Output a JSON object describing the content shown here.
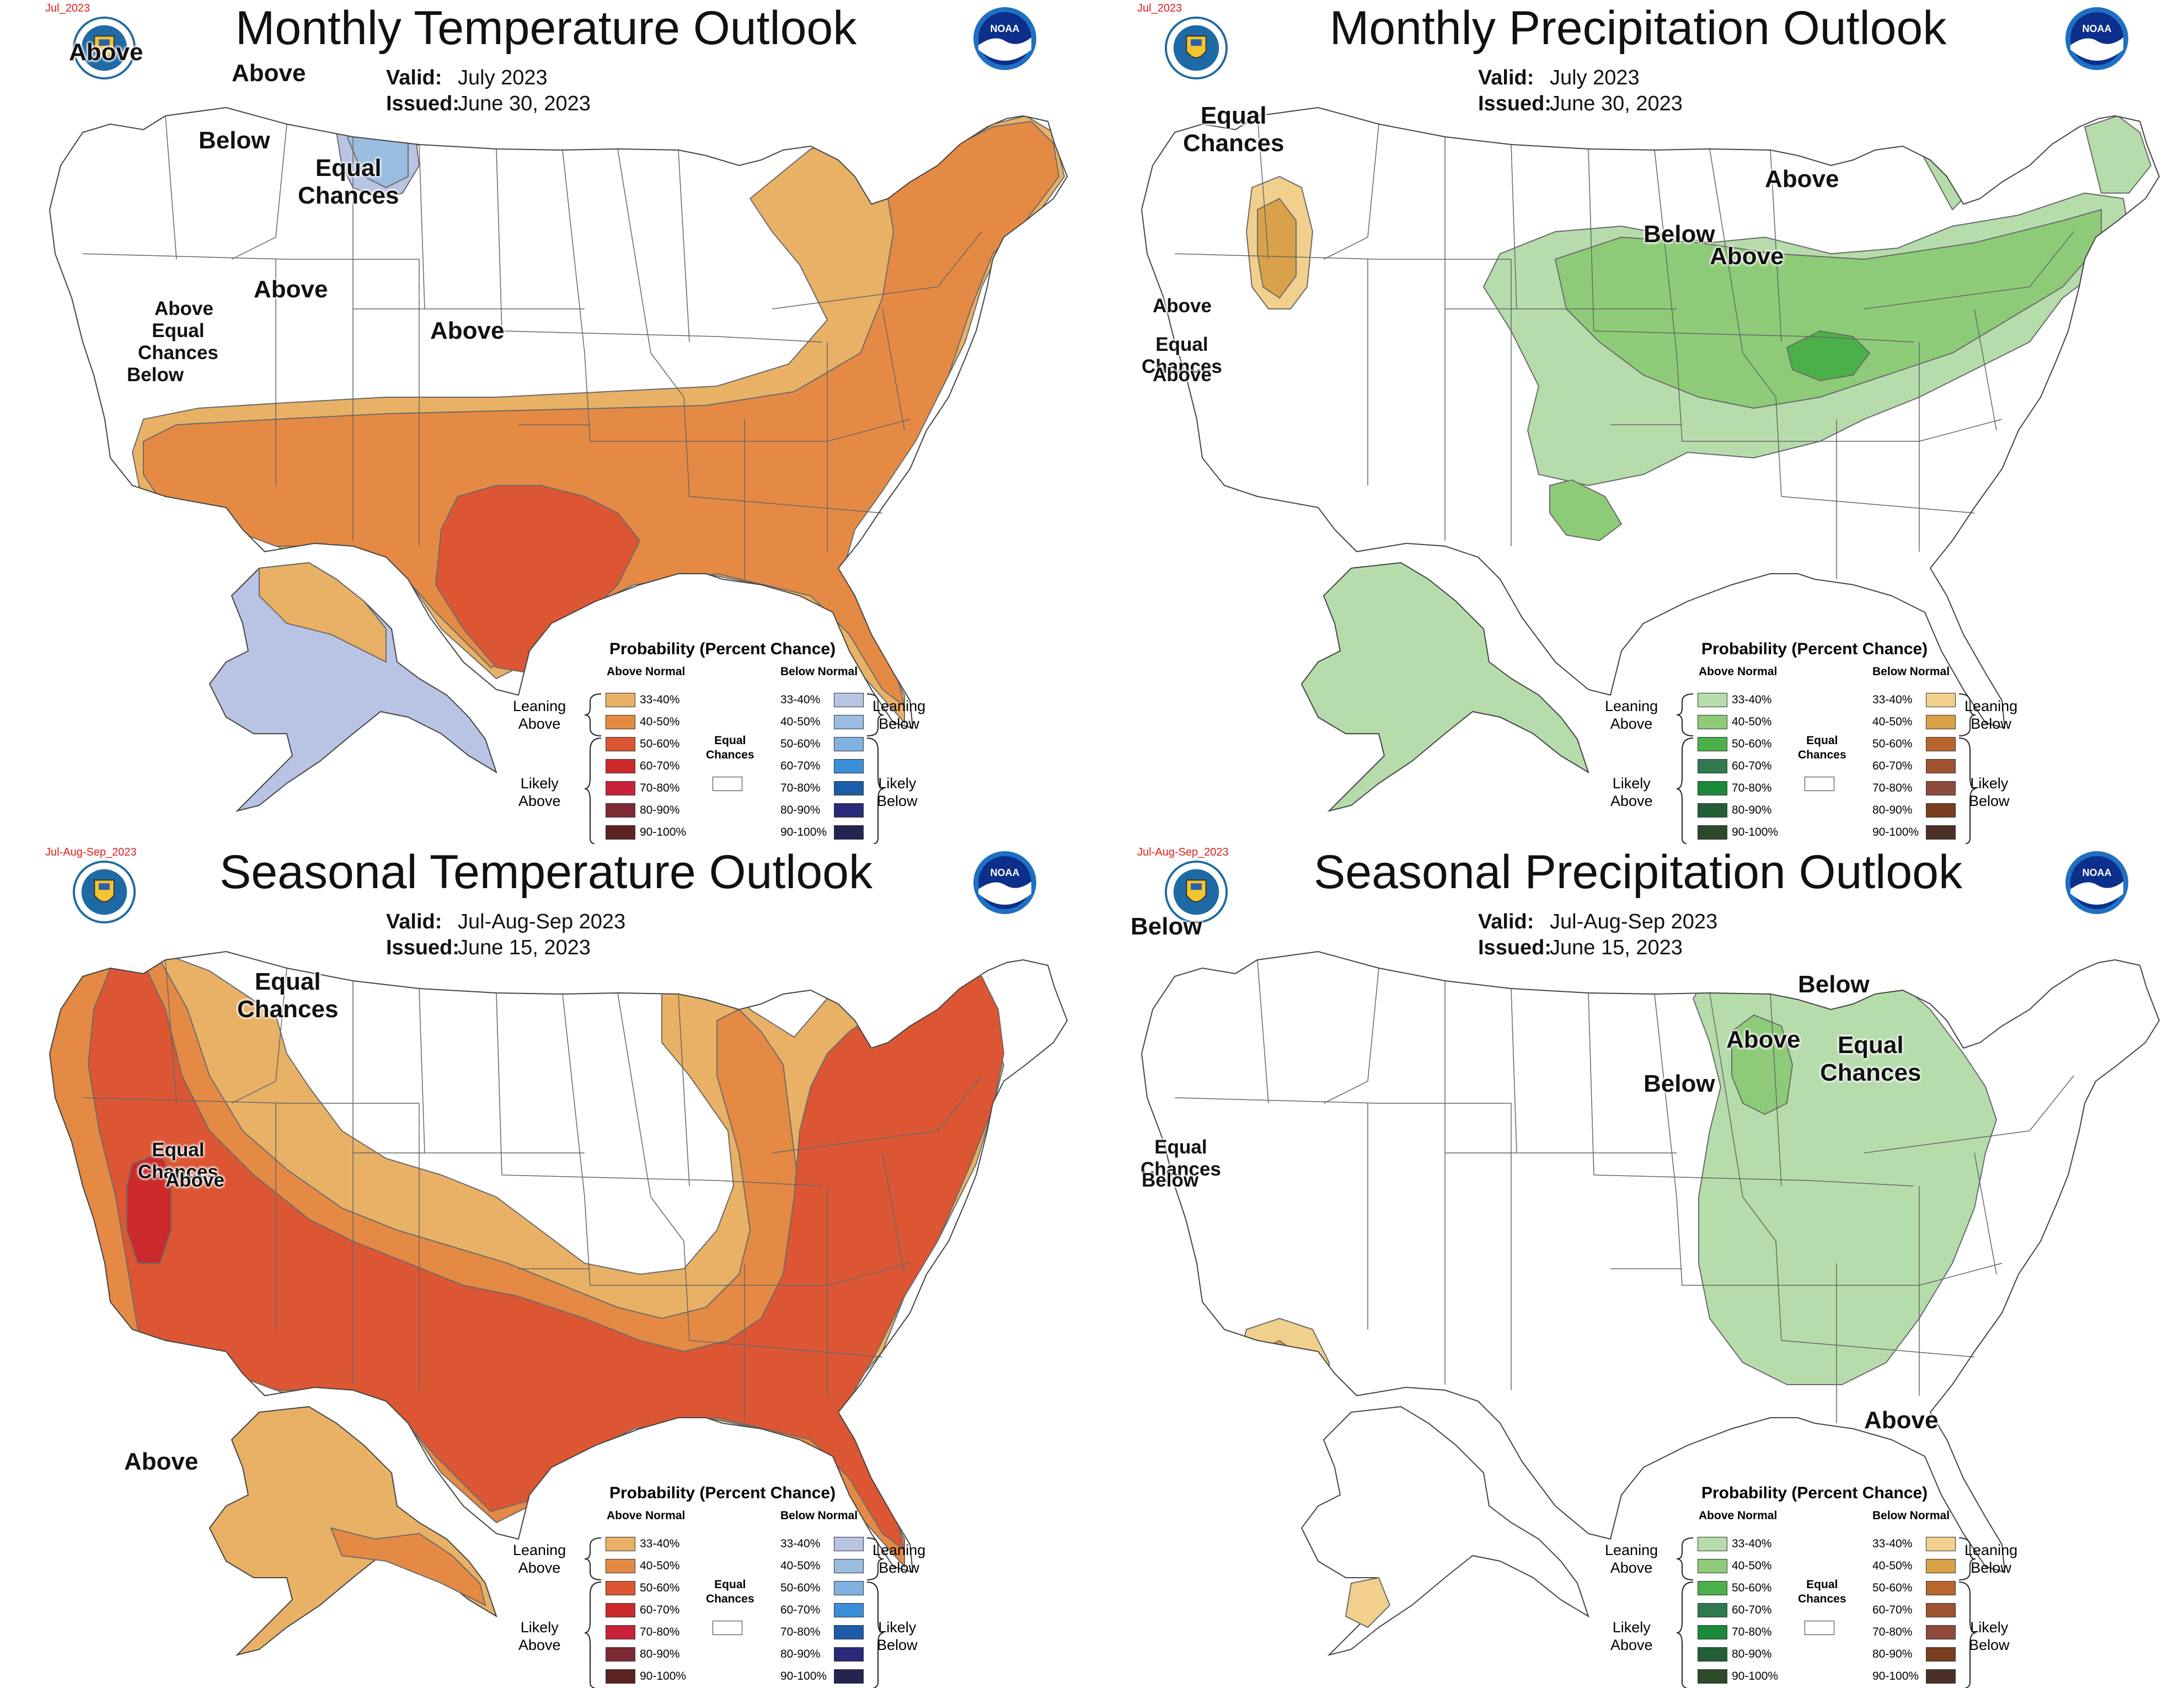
{
  "panels": [
    {
      "title": "Monthly Temperature Outlook",
      "period_tag": "Jul_2023",
      "valid_label": "Valid:",
      "valid": "July 2023",
      "issued_label": "Issued:",
      "issued": "June 30, 2023",
      "variable": "temperature",
      "map_labels": [
        "Above",
        "Above",
        "Below",
        "Equal Chances",
        "Above",
        "Above",
        "Equal Chances",
        "Below",
        "Above"
      ]
    },
    {
      "title": "Monthly Precipitation Outlook",
      "period_tag": "Jul_2023",
      "valid_label": "Valid:",
      "valid": "July 2023",
      "issued_label": "Issued:",
      "issued": "June 30, 2023",
      "variable": "precipitation",
      "map_labels": [
        "Equal Chances",
        "Above",
        "Below",
        "Above",
        "Above",
        "Equal Chances",
        "Above"
      ]
    },
    {
      "title": "Seasonal Temperature Outlook",
      "period_tag": "Jul-Aug-Sep_2023",
      "valid_label": "Valid:",
      "valid": "Jul-Aug-Sep 2023",
      "issued_label": "Issued:",
      "issued": "June 15, 2023",
      "variable": "temperature",
      "map_labels": [
        "Equal Chances",
        "Above",
        "Equal Chances",
        "Above"
      ]
    },
    {
      "title": "Seasonal Precipitation Outlook",
      "period_tag": "Jul-Aug-Sep_2023",
      "valid_label": "Valid:",
      "valid": "Jul-Aug-Sep 2023",
      "issued_label": "Issued:",
      "issued": "June 15, 2023",
      "variable": "precipitation",
      "map_labels": [
        "Below",
        "Below",
        "Above",
        "Below",
        "Equal Chances",
        "Above",
        "Equal Chances",
        "Below"
      ]
    }
  ],
  "legend": {
    "title": "Probability (Percent Chance)",
    "above_header": "Above Normal",
    "below_header": "Below Normal",
    "ranges": [
      "33-40%",
      "40-50%",
      "50-60%",
      "60-70%",
      "70-80%",
      "80-90%",
      "90-100%"
    ],
    "leaning_above": "Leaning Above",
    "likely_above": "Likely Above",
    "leaning_below": "Leaning Below",
    "likely_below": "Likely Below",
    "equal_chances": "Equal Chances"
  },
  "colors": {
    "temp_above": [
      "#e8b166",
      "#e58a45",
      "#dc5633",
      "#cc2a2a",
      "#c8223a",
      "#7e2a35",
      "#5a2320"
    ],
    "temp_below": [
      "#b9c4e4",
      "#9bbde0",
      "#7fb2e0",
      "#3a8fd8",
      "#1c5ca8",
      "#2a2a7a",
      "#232450"
    ],
    "precip_above": [
      "#b6dcac",
      "#8ecb78",
      "#4bb04a",
      "#2e7a4e",
      "#1a8a3a",
      "#235f36",
      "#2b4a2a"
    ],
    "precip_below": [
      "#f0d08c",
      "#d9a24a",
      "#b8652e",
      "#9e5230",
      "#8e4a3a",
      "#7a3e20",
      "#4a3028"
    ],
    "boundary": "#666666"
  }
}
